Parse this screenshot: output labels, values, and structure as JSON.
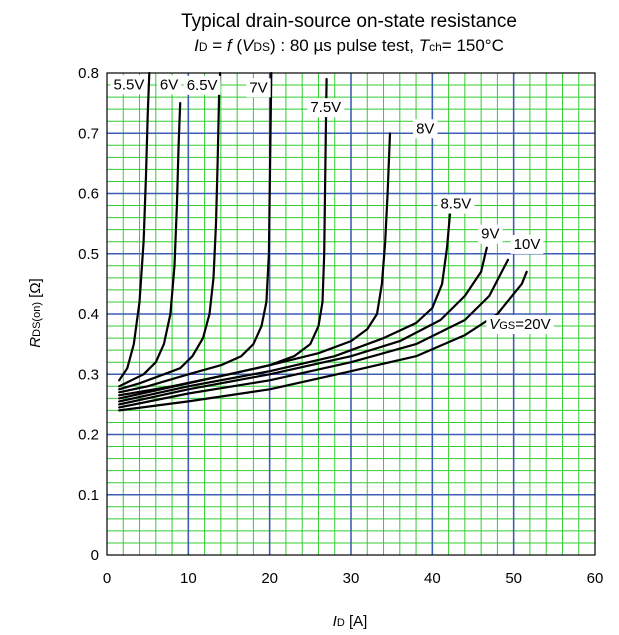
{
  "title": "Typical drain-source on-state resistance",
  "subtitle": {
    "id_sym": "I",
    "id_sub": "D",
    "eq": " = ",
    "f": "f",
    "paren_open": " (",
    "v_sym": "V",
    "v_sub": "DS",
    "paren_rest": ") : 80 µs pulse test, ",
    "t_sym": "T",
    "t_sub": "ch",
    "t_rest": "= 150°C"
  },
  "axes": {
    "x_label_sym": "I",
    "x_label_sub": "D",
    "x_label_unit": " [A]",
    "y_label_sym": "R",
    "y_label_sub": "DS(on)",
    "y_label_unit": " [Ω]",
    "x_ticks": [
      "0",
      "10",
      "20",
      "30",
      "40",
      "50",
      "60"
    ],
    "y_ticks": [
      "0",
      "0.1",
      "0.2",
      "0.3",
      "0.4",
      "0.5",
      "0.6",
      "0.7",
      "0.8"
    ]
  },
  "chart_data": {
    "type": "line",
    "xlim": [
      0,
      60
    ],
    "ylim": [
      0,
      0.8
    ],
    "grid": true,
    "major_grid_color": "#3d5fb3",
    "minor_grid_color": "#33cc33",
    "series": [
      {
        "name": "5.5V",
        "label_text": "5.5V",
        "points": [
          [
            1.5,
            0.29
          ],
          [
            2.5,
            0.31
          ],
          [
            3.3,
            0.35
          ],
          [
            4.0,
            0.42
          ],
          [
            4.5,
            0.52
          ],
          [
            4.8,
            0.63
          ],
          [
            5.0,
            0.73
          ],
          [
            5.2,
            0.8
          ]
        ]
      },
      {
        "name": "6V",
        "label_text": "6V",
        "points": [
          [
            1.5,
            0.28
          ],
          [
            3,
            0.29
          ],
          [
            4.5,
            0.3
          ],
          [
            6,
            0.32
          ],
          [
            7,
            0.35
          ],
          [
            7.8,
            0.4
          ],
          [
            8.3,
            0.48
          ],
          [
            8.6,
            0.58
          ],
          [
            8.8,
            0.68
          ],
          [
            9.0,
            0.75
          ]
        ]
      },
      {
        "name": "6.5V",
        "label_text": "6.5V",
        "points": [
          [
            1.5,
            0.275
          ],
          [
            4,
            0.285
          ],
          [
            7,
            0.3
          ],
          [
            9,
            0.31
          ],
          [
            10.5,
            0.33
          ],
          [
            11.8,
            0.36
          ],
          [
            12.6,
            0.4
          ],
          [
            13.1,
            0.46
          ],
          [
            13.4,
            0.55
          ],
          [
            13.6,
            0.65
          ],
          [
            13.8,
            0.77
          ],
          [
            13.9,
            0.8
          ]
        ]
      },
      {
        "name": "7V",
        "label_text": "7V",
        "points": [
          [
            1.5,
            0.27
          ],
          [
            5,
            0.28
          ],
          [
            10,
            0.3
          ],
          [
            14,
            0.315
          ],
          [
            16.5,
            0.33
          ],
          [
            18,
            0.35
          ],
          [
            19.0,
            0.38
          ],
          [
            19.6,
            0.42
          ],
          [
            19.9,
            0.5
          ],
          [
            20.0,
            0.6
          ],
          [
            20.1,
            0.7
          ],
          [
            20.2,
            0.8
          ]
        ]
      },
      {
        "name": "7.5V",
        "label_text": "7.5V",
        "points": [
          [
            1.5,
            0.265
          ],
          [
            8,
            0.28
          ],
          [
            15,
            0.3
          ],
          [
            20,
            0.315
          ],
          [
            23,
            0.33
          ],
          [
            25,
            0.35
          ],
          [
            26,
            0.38
          ],
          [
            26.5,
            0.42
          ],
          [
            26.7,
            0.5
          ],
          [
            26.8,
            0.6
          ],
          [
            26.9,
            0.7
          ],
          [
            27.0,
            0.79
          ]
        ]
      },
      {
        "name": "8V",
        "label_text": "8V",
        "points": [
          [
            1.5,
            0.26
          ],
          [
            10,
            0.285
          ],
          [
            20,
            0.315
          ],
          [
            26,
            0.335
          ],
          [
            30,
            0.355
          ],
          [
            32,
            0.375
          ],
          [
            33.2,
            0.4
          ],
          [
            33.8,
            0.45
          ],
          [
            34.2,
            0.52
          ],
          [
            34.5,
            0.6
          ],
          [
            34.8,
            0.7
          ]
        ]
      },
      {
        "name": "8.5V",
        "label_text": "8.5V",
        "points": [
          [
            1.5,
            0.255
          ],
          [
            10,
            0.28
          ],
          [
            20,
            0.305
          ],
          [
            28,
            0.33
          ],
          [
            34,
            0.36
          ],
          [
            38,
            0.385
          ],
          [
            40,
            0.41
          ],
          [
            41.2,
            0.45
          ],
          [
            41.8,
            0.51
          ],
          [
            42.2,
            0.57
          ]
        ]
      },
      {
        "name": "9V",
        "label_text": "9V",
        "points": [
          [
            1.5,
            0.25
          ],
          [
            10,
            0.275
          ],
          [
            20,
            0.3
          ],
          [
            30,
            0.33
          ],
          [
            36,
            0.355
          ],
          [
            41,
            0.39
          ],
          [
            44,
            0.43
          ],
          [
            46,
            0.47
          ],
          [
            46.7,
            0.51
          ]
        ]
      },
      {
        "name": "10V",
        "label_text": "10V",
        "points": [
          [
            1.5,
            0.245
          ],
          [
            10,
            0.268
          ],
          [
            20,
            0.29
          ],
          [
            30,
            0.32
          ],
          [
            38,
            0.35
          ],
          [
            44,
            0.39
          ],
          [
            47,
            0.43
          ],
          [
            49.3,
            0.49
          ]
        ]
      },
      {
        "name": "VGS=20V",
        "label_text": "=20V",
        "points": [
          [
            1.5,
            0.24
          ],
          [
            10,
            0.255
          ],
          [
            20,
            0.275
          ],
          [
            30,
            0.305
          ],
          [
            38,
            0.33
          ],
          [
            44,
            0.365
          ],
          [
            48,
            0.4
          ],
          [
            51,
            0.45
          ],
          [
            51.6,
            0.47
          ]
        ]
      }
    ]
  }
}
